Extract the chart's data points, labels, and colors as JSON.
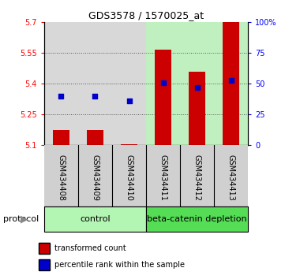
{
  "title": "GDS3578 / 1570025_at",
  "samples": [
    "GSM434408",
    "GSM434409",
    "GSM434410",
    "GSM434411",
    "GSM434412",
    "GSM434413"
  ],
  "groups": [
    "control",
    "control",
    "control",
    "beta-catenin depletion",
    "beta-catenin depletion",
    "beta-catenin depletion"
  ],
  "transformed_count": [
    5.175,
    5.175,
    5.105,
    5.565,
    5.46,
    5.7
  ],
  "bar_bottom": 5.1,
  "percentile_rank": [
    40,
    40,
    36,
    51,
    47,
    53
  ],
  "ylim_left": [
    5.1,
    5.7
  ],
  "ylim_right": [
    0,
    100
  ],
  "yticks_left": [
    5.1,
    5.25,
    5.4,
    5.55,
    5.7
  ],
  "yticks_right": [
    0,
    25,
    50,
    75,
    100
  ],
  "ytick_labels_left": [
    "5.1",
    "5.25",
    "5.4",
    "5.55",
    "5.7"
  ],
  "ytick_labels_right": [
    "0",
    "25",
    "50",
    "75",
    "100%"
  ],
  "bar_color": "#cc0000",
  "dot_color": "#0000cc",
  "control_color": "#b3f5b3",
  "depletion_color": "#55dd55",
  "sample_bg_control": "#d8d8d8",
  "sample_bg_depletion": "#c0f0c0",
  "grid_color": "#555555",
  "bar_width": 0.5,
  "protocol_label": "protocol",
  "control_label": "control",
  "depletion_label": "beta-catenin depletion",
  "legend_red": "transformed count",
  "legend_blue": "percentile rank within the sample",
  "title_fontsize": 9,
  "tick_fontsize": 7,
  "label_fontsize": 8
}
